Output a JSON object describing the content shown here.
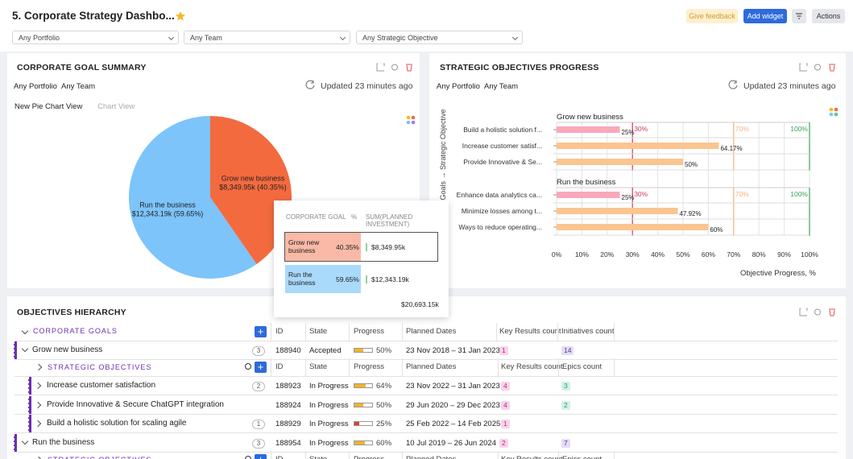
{
  "header": {
    "title": "5. Corporate Strategy Dashbo...",
    "buttons": [
      "Give feedback",
      "Add widget",
      "Actions"
    ]
  },
  "filters": [
    "Any Portfolio",
    "Any Team",
    "Any Strategic Objective"
  ],
  "goal_summary": {
    "title": "CORPORATE GOAL SUMMARY",
    "filters": [
      "Any Portfolio",
      "Any Team"
    ],
    "updated": "Updated 23 minutes ago",
    "tabs": [
      "New Pie Chart View",
      "Chart View"
    ],
    "chart_data": {
      "type": "pie",
      "categories": [
        "Grow new business",
        "Run the business"
      ],
      "values": [
        40.35,
        59.65
      ],
      "value_labels": [
        "$8,349.95k (40.35%)",
        "$12,343.19k (59.65%)"
      ],
      "colors": [
        "#f46a3f",
        "#7cc4fa"
      ]
    },
    "tooltip": {
      "columns": [
        "CORPORATE GOAL",
        "%",
        "SUM(PLANNED INVESTMENT)"
      ],
      "rows": [
        [
          "Grow new business",
          "40.35%",
          "$8,349.95k"
        ],
        [
          "Run the business",
          "59.65%",
          "$12,343.19k"
        ]
      ],
      "total": "$20,693.15k"
    }
  },
  "objectives_progress": {
    "title": "STRATEGIC OBJECTIVES PROGRESS",
    "filters": [
      "Any Portfolio",
      "Any Team"
    ],
    "updated": "Updated 23 minutes ago",
    "chart_data": {
      "type": "bar",
      "y_label": "Goals → Strategic Objective",
      "x_label": "Objective Progress, %",
      "xlim": [
        0,
        100
      ],
      "xticks": [
        {
          "value": 0,
          "label": "0%"
        },
        {
          "value": 10,
          "label": "10%"
        },
        {
          "value": 20,
          "label": "20%"
        },
        {
          "value": 30,
          "label": "30%"
        },
        {
          "value": 40,
          "label": "40%"
        },
        {
          "value": 50,
          "label": "50%"
        },
        {
          "value": 60,
          "label": "60%"
        },
        {
          "value": 70,
          "label": "70%"
        },
        {
          "value": 80,
          "label": "80%"
        },
        {
          "value": 90,
          "label": "90%"
        },
        {
          "value": 100,
          "label": "100%"
        }
      ],
      "thresholds": [
        {
          "value": 0,
          "label": "0%",
          "color": "#f27a9b"
        },
        {
          "value": 30,
          "label": "30%",
          "color": "#c93c62"
        },
        {
          "value": 70,
          "label": "70%",
          "color": "#f5b27a"
        },
        {
          "value": 100,
          "label": "100%",
          "color": "#3aa35a"
        }
      ],
      "groups": [
        {
          "name": "Grow new business",
          "categories": [
            "Build a holistic solution f...",
            "Increase customer satisf...",
            "Provide Innovative & Se..."
          ],
          "values": [
            25,
            64.17,
            50
          ],
          "value_labels": [
            "25%",
            "64.17%",
            "50%"
          ],
          "colors": [
            "#f9a8ba",
            "#fbc590",
            "#fbc590"
          ]
        },
        {
          "name": "Run the business",
          "categories": [
            "Enhance data analytics ca...",
            "Minimize losses among t...",
            "Ways to reduce operating..."
          ],
          "values": [
            25,
            47.92,
            60
          ],
          "value_labels": [
            "25%",
            "47.92%",
            "60%"
          ],
          "colors": [
            "#f9a8ba",
            "#fbc590",
            "#fbc590"
          ]
        }
      ]
    }
  },
  "hierarchy": {
    "title": "OBJECTIVES HIERARCHY",
    "root_label": "CORPORATE GOALS",
    "columns": [
      "ID",
      "State",
      "Progress",
      "Planned Dates",
      "Key Results count",
      "Initiatives count"
    ],
    "goals": [
      {
        "name": "Grow new business",
        "count": 3,
        "id": "188940",
        "state": "Accepted",
        "progress": 50,
        "progress_label": "50%",
        "dates": "23 Nov 2018 – 31 Jan 2023",
        "key_results": 1,
        "initiatives": 14,
        "objectives": {
          "label": "STRATEGIC OBJECTIVES",
          "columns": [
            "ID",
            "State",
            "Progress",
            "Planned Dates",
            "Key Results count",
            "Epics count"
          ],
          "rows": [
            {
              "name": "Increase customer satisfaction",
              "count": 2,
              "id": "188923",
              "state": "In Progress",
              "progress": 64,
              "progress_label": "64%",
              "dates": "23 Nov 2022 – 31 Jan 2023",
              "key_results": 4,
              "epics": 3
            },
            {
              "name": "Provide Innovative & Secure ChatGPT integration",
              "id": "188924",
              "state": "In Progress",
              "progress": 50,
              "progress_label": "50%",
              "dates": "29 Jun 2020 – 29 Dec 2023",
              "key_results": 4,
              "epics": 2
            },
            {
              "name": "Build a holistic solution for scaling agile",
              "count": 1,
              "id": "188929",
              "state": "In Progress",
              "progress": 25,
              "progress_label": "25%",
              "dates": "25 Feb 2022 – 14 Feb 2025",
              "key_results": 1
            }
          ]
        }
      },
      {
        "name": "Run the business",
        "count": 3,
        "id": "188954",
        "state": "In Progress",
        "progress": 60,
        "progress_label": "60%",
        "dates": "10 Jul 2019 – 26 Jun 2024",
        "key_results": 2,
        "initiatives": 7,
        "objectives": {
          "label": "STRATEGIC OBJECTIVES",
          "columns": [
            "ID",
            "State",
            "Progress",
            "Planned Dates",
            "Key Results count",
            "Epics count"
          ],
          "rows": []
        }
      }
    ]
  }
}
